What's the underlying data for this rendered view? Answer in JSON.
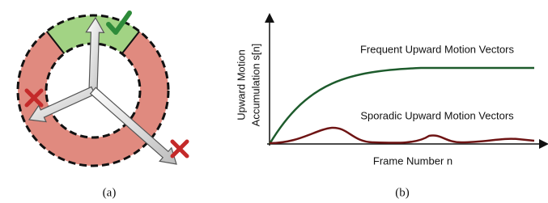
{
  "panel_a": {
    "caption": "(a)"
  },
  "panel_b": {
    "caption": "(b)",
    "y_axis_label": [
      "Upward Motion",
      "Accumulation s[n]"
    ],
    "x_axis_label": "Frame Number n",
    "curve_labels": [
      "Frequent Upward Motion Vectors",
      "Sporadic Upward Motion Vectors"
    ]
  }
}
